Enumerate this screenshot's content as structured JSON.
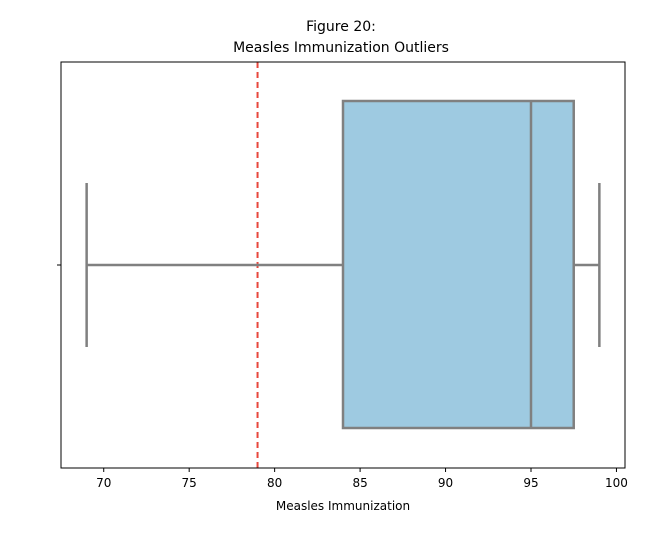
{
  "chart_data": {
    "type": "box",
    "title": "Figure 20:",
    "subtitle": "Measles Immunization Outliers",
    "xlabel": "Measles Immunization",
    "ylabel": "",
    "xlim": [
      67.5,
      100.5
    ],
    "xticks": [
      70,
      75,
      80,
      85,
      90,
      95,
      100
    ],
    "box": {
      "whisker_low": 69,
      "q1": 84,
      "median": 95,
      "q3": 97.5,
      "whisker_high": 99
    },
    "reference_line": {
      "x": 79,
      "style": "dashed"
    },
    "grid": false,
    "colors": {
      "box_fill": "#9ecae1",
      "box_edge": "#808080",
      "reference_line": "#e8473c"
    }
  }
}
